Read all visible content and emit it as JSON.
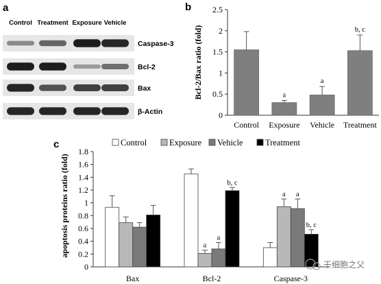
{
  "panel_a": {
    "letter": "a",
    "lanes": [
      "Control",
      "Treatment",
      "Exposure",
      "Vehicle"
    ],
    "proteins": [
      "Caspase-3",
      "Bcl-2",
      "Bax",
      "β-Actin"
    ],
    "band_intensity": [
      [
        0.35,
        0.55,
        0.95,
        0.9
      ],
      [
        0.95,
        0.95,
        0.25,
        0.5
      ],
      [
        0.9,
        0.65,
        0.75,
        0.75
      ],
      [
        0.9,
        0.9,
        0.9,
        0.9
      ]
    ]
  },
  "chart_data": [
    {
      "panel": "b",
      "type": "bar",
      "ylabel": "Bcl-2/Bax ratio (fold)",
      "xlabel": "",
      "ylim": [
        0,
        2.5
      ],
      "yticks": [
        "0",
        "0.5",
        "1",
        "1.5",
        "2",
        "2.5"
      ],
      "categories": [
        "Control",
        "Exposure",
        "Vehicle",
        "Treatment"
      ],
      "values": [
        1.55,
        0.3,
        0.48,
        1.53
      ],
      "errors": [
        0.43,
        0.05,
        0.2,
        0.37
      ],
      "significance": [
        "",
        "a",
        "a",
        "b, c"
      ],
      "bar_color": "#7f7f7f",
      "grid": false
    },
    {
      "panel": "c",
      "type": "bar",
      "ylabel": "apoptosis proteins ratio (fold)",
      "xlabel": "",
      "ylim": [
        0,
        1.8
      ],
      "yticks": [
        "0",
        "0.2",
        "0.4",
        "0.6",
        "0.8",
        "1",
        "1.2",
        "1.4",
        "1.6",
        "1.8"
      ],
      "categories": [
        "Bax",
        "Bcl-2",
        "Caspase-3"
      ],
      "legend_position": "top",
      "grid": false,
      "series": [
        {
          "name": "Control",
          "color": "#ffffff",
          "values": [
            0.93,
            1.45,
            0.3
          ],
          "errors": [
            0.18,
            0.08,
            0.08
          ],
          "significance": [
            "",
            "",
            ""
          ]
        },
        {
          "name": "Exposure",
          "color": "#b8b8b8",
          "values": [
            0.69,
            0.21,
            0.94
          ],
          "errors": [
            0.09,
            0.05,
            0.12
          ],
          "significance": [
            "",
            "a",
            "a"
          ]
        },
        {
          "name": "Vehicle",
          "color": "#7a7a7a",
          "values": [
            0.62,
            0.28,
            0.91
          ],
          "errors": [
            0.07,
            0.1,
            0.15
          ],
          "significance": [
            "",
            "a",
            "a"
          ]
        },
        {
          "name": "Treatment",
          "color": "#000000",
          "values": [
            0.81,
            1.19,
            0.51
          ],
          "errors": [
            0.15,
            0.05,
            0.07
          ],
          "significance": [
            "",
            "b, c",
            "b, c"
          ]
        }
      ]
    }
  ],
  "watermark": "干细胞之父"
}
